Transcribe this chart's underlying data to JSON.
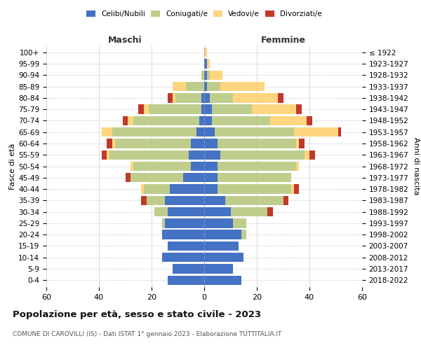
{
  "age_groups": [
    "0-4",
    "5-9",
    "10-14",
    "15-19",
    "20-24",
    "25-29",
    "30-34",
    "35-39",
    "40-44",
    "45-49",
    "50-54",
    "55-59",
    "60-64",
    "65-69",
    "70-74",
    "75-79",
    "80-84",
    "85-89",
    "90-94",
    "95-99",
    "100+"
  ],
  "birth_years": [
    "2018-2022",
    "2013-2017",
    "2008-2012",
    "2003-2007",
    "1998-2002",
    "1993-1997",
    "1988-1992",
    "1983-1987",
    "1978-1982",
    "1973-1977",
    "1968-1972",
    "1963-1967",
    "1958-1962",
    "1953-1957",
    "1948-1952",
    "1943-1947",
    "1938-1942",
    "1933-1937",
    "1928-1932",
    "1923-1927",
    "≤ 1922"
  ],
  "male": {
    "celibi": [
      14,
      12,
      16,
      14,
      16,
      15,
      14,
      15,
      13,
      8,
      5,
      6,
      5,
      3,
      2,
      1,
      1,
      0,
      0,
      0,
      0
    ],
    "coniugati": [
      0,
      0,
      0,
      0,
      0,
      1,
      5,
      7,
      10,
      20,
      22,
      30,
      29,
      32,
      25,
      20,
      10,
      7,
      1,
      0,
      0
    ],
    "vedovi": [
      0,
      0,
      0,
      0,
      0,
      0,
      0,
      0,
      1,
      0,
      1,
      1,
      1,
      4,
      2,
      2,
      1,
      5,
      0,
      0,
      0
    ],
    "divorziati": [
      0,
      0,
      0,
      0,
      0,
      0,
      0,
      2,
      0,
      2,
      0,
      2,
      2,
      0,
      2,
      2,
      2,
      0,
      0,
      0,
      0
    ]
  },
  "female": {
    "nubili": [
      14,
      11,
      15,
      13,
      14,
      11,
      10,
      8,
      5,
      5,
      5,
      6,
      5,
      4,
      3,
      3,
      2,
      1,
      1,
      1,
      0
    ],
    "coniugate": [
      0,
      0,
      0,
      0,
      2,
      5,
      14,
      22,
      28,
      28,
      30,
      32,
      30,
      30,
      22,
      15,
      9,
      5,
      1,
      0,
      0
    ],
    "vedove": [
      0,
      0,
      0,
      0,
      0,
      0,
      0,
      0,
      1,
      0,
      1,
      2,
      1,
      17,
      14,
      17,
      17,
      17,
      5,
      1,
      1
    ],
    "divorziate": [
      0,
      0,
      0,
      0,
      0,
      0,
      2,
      2,
      2,
      0,
      0,
      2,
      2,
      1,
      2,
      2,
      2,
      0,
      0,
      0,
      0
    ]
  },
  "colors": {
    "celibi": "#4472C4",
    "coniugati": "#BFCD8C",
    "vedovi": "#FFD580",
    "divorziati": "#C0392B"
  },
  "title": "Popolazione per età, sesso e stato civile - 2023",
  "subtitle": "COMUNE DI CAROVILLI (IS) - Dati ISTAT 1° gennaio 2023 - Elaborazione TUTTITALIA.IT",
  "xlabel_left": "Maschi",
  "xlabel_right": "Femmine",
  "ylabel_left": "Fasce di età",
  "ylabel_right": "Anni di nascita",
  "xlim": 60,
  "background_color": "#ffffff",
  "grid_color": "#cccccc"
}
